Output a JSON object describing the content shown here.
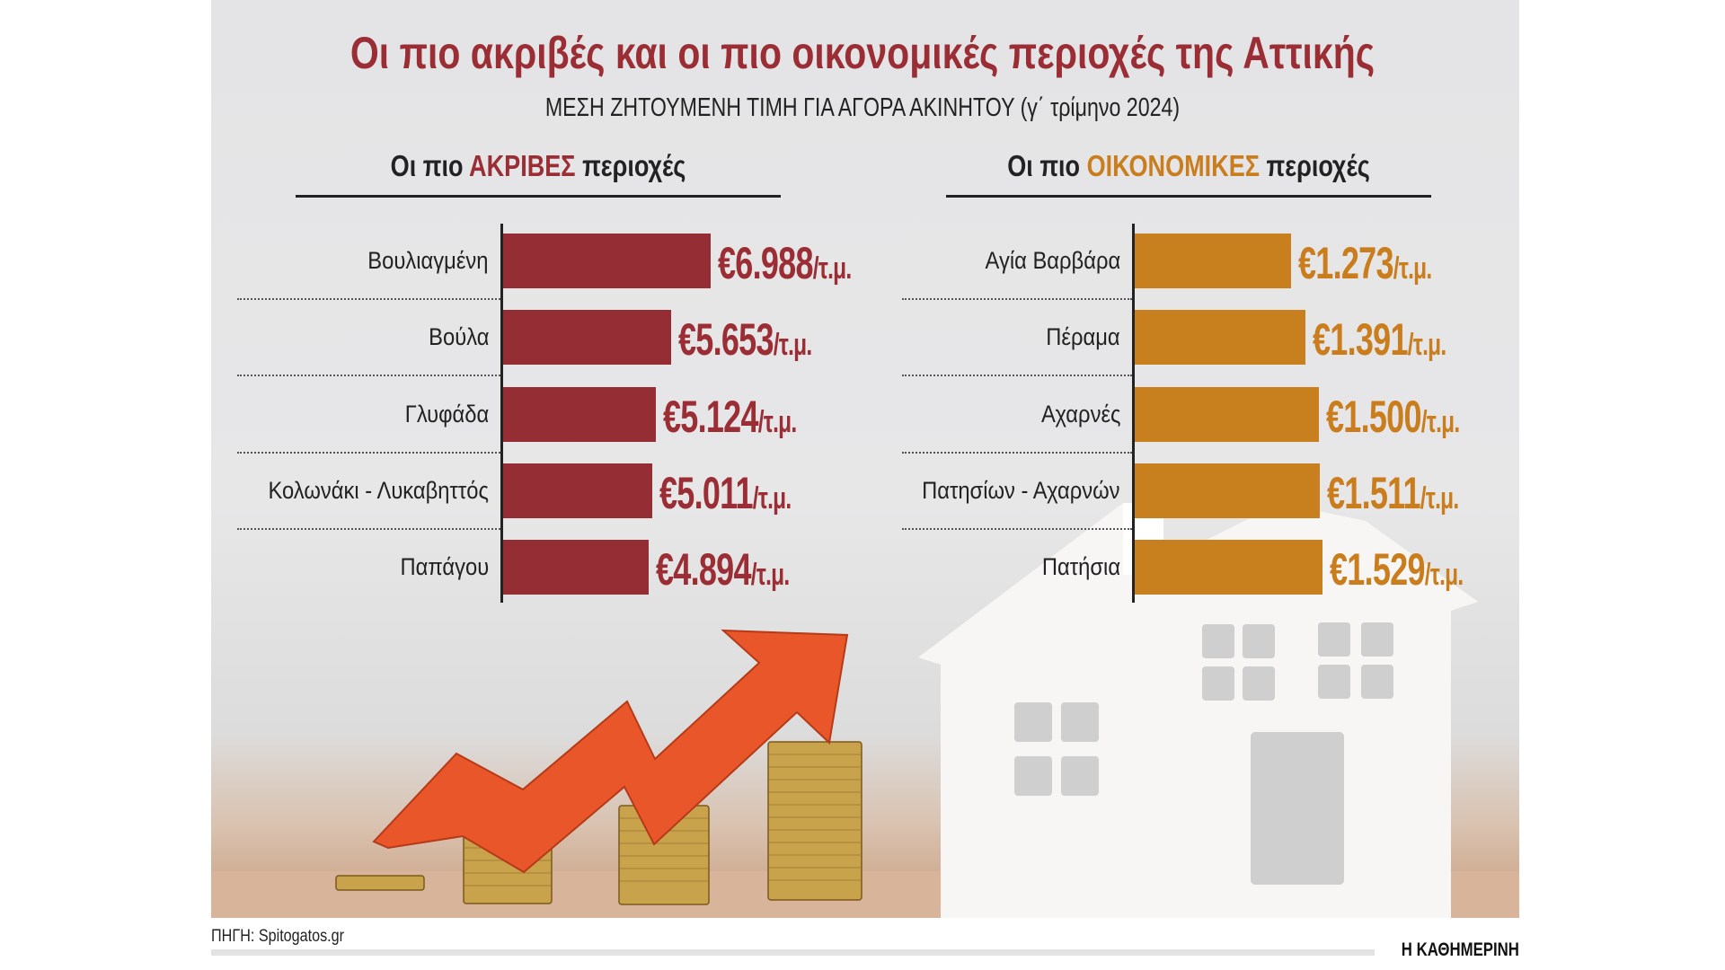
{
  "header": {
    "title": "Οι πιο ακριβές και οι πιο οικονομικές περιοχές της Αττικής",
    "subtitle": "ΜΕΣΗ ΖΗΤΟΥΜΕΝΗ ΤΙΜΗ ΓΙΑ ΑΓΟΡΑ ΑΚΙΝΗΤΟΥ (γ΄ τρίμηνο 2024)"
  },
  "chart_data": [
    {
      "type": "bar",
      "orientation": "horizontal",
      "title_prefix": "Οι πιο",
      "title_highlight": "ΑΚΡΙΒΕΣ",
      "title_suffix": "περιοχές",
      "categories": [
        "Βουλιαγμένη",
        "Βούλα",
        "Γλυφάδα",
        "Κολωνάκι - Λυκαβηττός",
        "Παπάγου"
      ],
      "values": [
        6988,
        5653,
        5124,
        5011,
        4894
      ],
      "value_labels": [
        "€6.988",
        "€5.653",
        "€5.124",
        "€5.011",
        "€4.894"
      ],
      "unit": "/τ.μ.",
      "color": "#952d35",
      "label_color": "#9b2d35"
    },
    {
      "type": "bar",
      "orientation": "horizontal",
      "title_prefix": "Οι πιο",
      "title_highlight": "ΟΙΚΟΝΟΜΙΚΕΣ",
      "title_suffix": "περιοχές",
      "categories": [
        "Αγία Βαρβάρα",
        "Πέραμα",
        "Αχαρνές",
        "Πατησίων - Αχαρνών",
        "Πατήσια"
      ],
      "values": [
        1273,
        1391,
        1500,
        1511,
        1529
      ],
      "value_labels": [
        "€1.273",
        "€1.391",
        "€1.500",
        "€1.511",
        "€1.529"
      ],
      "unit": "/τ.μ.",
      "color": "#c8801f",
      "label_color": "#c97d1d"
    }
  ],
  "footer": {
    "source": "ΠΗΓΗ: Spitogatos.gr",
    "publisher": "Η ΚΑΘΗΜΕΡΙΝΗ"
  }
}
